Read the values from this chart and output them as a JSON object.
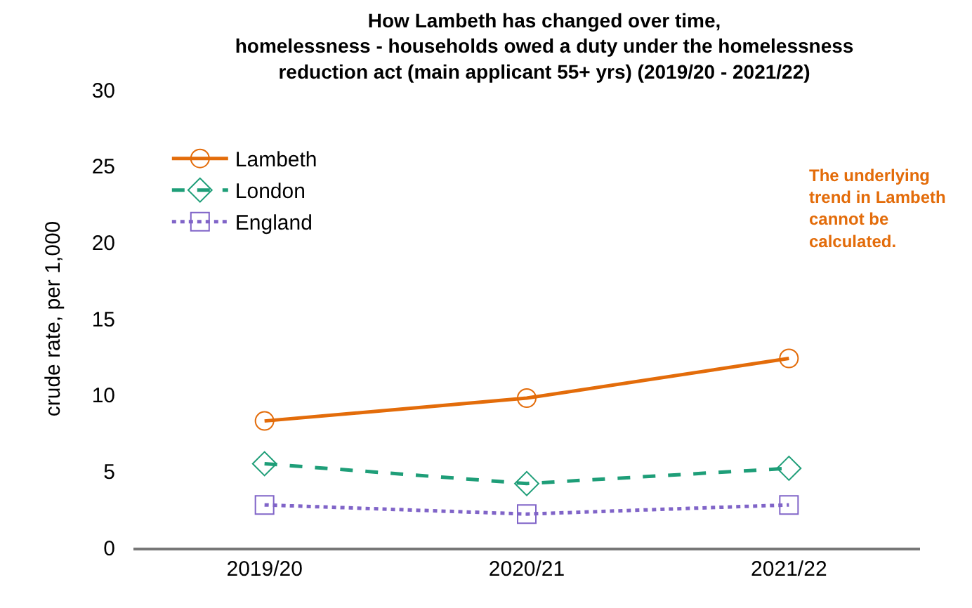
{
  "chart_data": {
    "type": "line",
    "title": "How Lambeth has changed over time,\nhomelessness - households owed a duty under the homelessness\nreduction act (main applicant 55+ yrs) (2019/20 - 2021/22)",
    "ylabel": "crude rate, per 1,000",
    "categories": [
      "2019/20",
      "2020/21",
      "2021/22"
    ],
    "series": [
      {
        "name": "Lambeth",
        "color": "#e36c0a",
        "values": [
          8.3,
          9.8,
          12.4
        ],
        "line_style": "solid",
        "marker": "circle"
      },
      {
        "name": "London",
        "color": "#1e9e78",
        "values": [
          5.5,
          4.2,
          5.2
        ],
        "line_style": "dashed",
        "marker": "diamond"
      },
      {
        "name": "England",
        "color": "#8064c8",
        "values": [
          2.8,
          2.2,
          2.8
        ],
        "line_style": "dotted",
        "marker": "square"
      }
    ],
    "ylim": [
      0,
      30
    ],
    "yticks": [
      0,
      5,
      10,
      15,
      20,
      25,
      30
    ],
    "grid": false,
    "legend": "top left",
    "annotations": [
      "The underlying trend in Lambeth cannot be calculated."
    ]
  }
}
